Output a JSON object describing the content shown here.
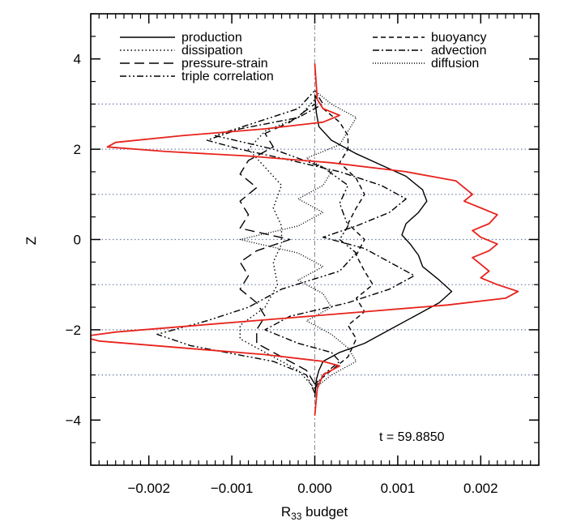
{
  "chart_data": {
    "type": "line",
    "xlabel": "R",
    "xlabel_subscript": "33",
    "xlabel_suffix": " budget",
    "ylabel": "Z",
    "xlim": [
      -0.0027,
      0.0027
    ],
    "ylim": [
      -5,
      5
    ],
    "x_ticks": [
      -0.002,
      -0.001,
      0.0,
      0.001,
      0.002
    ],
    "x_tick_labels": [
      "−0.002",
      "−0.001",
      "0.000",
      "0.001",
      "0.002"
    ],
    "y_ticks": [
      -4,
      -2,
      0,
      2,
      4
    ],
    "y_tick_labels": [
      "−4",
      "−2",
      "0",
      "2",
      "4"
    ],
    "horizontal_reference_lines": [
      -3,
      -2,
      -1,
      0,
      1,
      2,
      3
    ],
    "vertical_reference_line": 0,
    "annotation": "t = 59.8850",
    "legend_placement": "top",
    "series": [
      {
        "name": "production",
        "style": "solid",
        "color": "#000000",
        "points": [
          [
            0,
            -3.5
          ],
          [
            2e-05,
            -3.1
          ],
          [
            5e-05,
            -2.9
          ],
          [
            0.0001,
            -2.7
          ],
          [
            0.0003,
            -2.5
          ],
          [
            0.0006,
            -2.3
          ],
          [
            0.0009,
            -2.0
          ],
          [
            0.0012,
            -1.7
          ],
          [
            0.0015,
            -1.4
          ],
          [
            0.00165,
            -1.15
          ],
          [
            0.0015,
            -0.9
          ],
          [
            0.0013,
            -0.6
          ],
          [
            0.00125,
            -0.35
          ],
          [
            0.00115,
            -0.1
          ],
          [
            0.00105,
            0.1
          ],
          [
            0.0011,
            0.35
          ],
          [
            0.00125,
            0.6
          ],
          [
            0.00135,
            0.85
          ],
          [
            0.0013,
            1.1
          ],
          [
            0.0011,
            1.4
          ],
          [
            0.0008,
            1.65
          ],
          [
            0.0005,
            1.9
          ],
          [
            0.0002,
            2.2
          ],
          [
            5e-05,
            2.5
          ],
          [
            2e-05,
            2.8
          ],
          [
            0,
            3.2
          ]
        ]
      },
      {
        "name": "dissipation",
        "style": "dotted",
        "color": "#000000",
        "points": [
          [
            0,
            -3.3
          ],
          [
            -0.0002,
            -2.9
          ],
          [
            -0.0006,
            -2.5
          ],
          [
            -0.0009,
            -2.2
          ],
          [
            -0.0009,
            -1.9
          ],
          [
            -0.0006,
            -1.5
          ],
          [
            -0.00045,
            -1.0
          ],
          [
            -0.0005,
            -0.5
          ],
          [
            -0.0004,
            -0.1
          ],
          [
            -0.0004,
            0.3
          ],
          [
            -0.0005,
            0.7
          ],
          [
            -0.0004,
            1.2
          ],
          [
            -0.0006,
            1.6
          ],
          [
            -0.0008,
            2.0
          ],
          [
            -0.0006,
            2.4
          ],
          [
            -0.0002,
            2.7
          ],
          [
            0,
            3.1
          ]
        ]
      },
      {
        "name": "pressure-strain",
        "style": "long-dash",
        "color": "#000000",
        "points": [
          [
            0,
            -3.2
          ],
          [
            -0.0001,
            -2.9
          ],
          [
            -0.0004,
            -2.6
          ],
          [
            -0.0007,
            -2.3
          ],
          [
            -0.0007,
            -2.0
          ],
          [
            -0.0006,
            -1.7
          ],
          [
            -0.0007,
            -1.4
          ],
          [
            -0.0009,
            -1.1
          ],
          [
            -0.0008,
            -0.8
          ],
          [
            -0.0009,
            -0.5
          ],
          [
            -0.0007,
            -0.25
          ],
          [
            -0.0003,
            0.0
          ],
          [
            -0.0009,
            0.25
          ],
          [
            -0.0008,
            0.55
          ],
          [
            -0.0009,
            0.85
          ],
          [
            -0.0007,
            1.15
          ],
          [
            -0.0009,
            1.45
          ],
          [
            -0.0008,
            1.75
          ],
          [
            -0.0005,
            2.05
          ],
          [
            -0.0006,
            2.35
          ],
          [
            -0.0003,
            2.6
          ],
          [
            0,
            3.0
          ]
        ]
      },
      {
        "name": "triple correlation",
        "style": "dash-dot-dot",
        "color": "#000000",
        "points": [
          [
            0,
            -3.4
          ],
          [
            -0.0001,
            -3.0
          ],
          [
            -0.0005,
            -2.7
          ],
          [
            -0.0015,
            -2.35
          ],
          [
            -0.0019,
            -2.1
          ],
          [
            -0.0013,
            -1.8
          ],
          [
            -0.0008,
            -1.5
          ],
          [
            -0.0004,
            -1.1
          ],
          [
            0.0003,
            -0.7
          ],
          [
            0.0005,
            -0.3
          ],
          [
            0.0003,
            0.0
          ],
          [
            0.0004,
            0.3
          ],
          [
            0.0003,
            0.8
          ],
          [
            0.0004,
            1.2
          ],
          [
            0.0001,
            1.6
          ],
          [
            -0.0005,
            2.0
          ],
          [
            -0.0012,
            2.3
          ],
          [
            -0.0007,
            2.6
          ],
          [
            -0.0002,
            2.9
          ],
          [
            0,
            3.3
          ]
        ]
      },
      {
        "name": "buoyancy",
        "style": "short-dash",
        "color": "#000000",
        "points": [
          [
            0,
            -3.2
          ],
          [
            0.0002,
            -2.9
          ],
          [
            0.0004,
            -2.6
          ],
          [
            0.0005,
            -2.2
          ],
          [
            0.0004,
            -1.9
          ],
          [
            0.0006,
            -1.6
          ],
          [
            0.0005,
            -1.3
          ],
          [
            0.0007,
            -1.0
          ],
          [
            0.0006,
            -0.7
          ],
          [
            0.0005,
            -0.35
          ],
          [
            0.0006,
            0.0
          ],
          [
            0.0004,
            0.35
          ],
          [
            0.0005,
            0.7
          ],
          [
            0.0006,
            1.0
          ],
          [
            0.0005,
            1.35
          ],
          [
            0.0003,
            1.7
          ],
          [
            0.0004,
            2.0
          ],
          [
            0.0004,
            2.3
          ],
          [
            0.0003,
            2.6
          ],
          [
            0.0001,
            2.9
          ],
          [
            0,
            3.2
          ]
        ]
      },
      {
        "name": "advection",
        "style": "dash-dot",
        "color": "#000000",
        "points": [
          [
            0,
            -3.3
          ],
          [
            0.0001,
            -3.0
          ],
          [
            0.0003,
            -2.7
          ],
          [
            0.0002,
            -2.5
          ],
          [
            -0.0002,
            -2.3
          ],
          [
            -0.0006,
            -2.0
          ],
          [
            -0.0003,
            -1.7
          ],
          [
            0.0004,
            -1.4
          ],
          [
            0.0009,
            -1.1
          ],
          [
            0.0012,
            -0.8
          ],
          [
            0.0009,
            -0.5
          ],
          [
            0.0006,
            -0.2
          ],
          [
            0.0001,
            0.05
          ],
          [
            0.0005,
            0.3
          ],
          [
            0.0009,
            0.6
          ],
          [
            0.0011,
            0.9
          ],
          [
            0.0008,
            1.2
          ],
          [
            0.0003,
            1.5
          ],
          [
            -0.0004,
            1.8
          ],
          [
            -0.0009,
            2.0
          ],
          [
            -0.0013,
            2.2
          ],
          [
            -0.0009,
            2.45
          ],
          [
            -0.0002,
            2.7
          ],
          [
            0.0001,
            3.0
          ],
          [
            0,
            3.3
          ]
        ]
      },
      {
        "name": "diffusion",
        "style": "fine-dotted",
        "color": "#000000",
        "points": [
          [
            0,
            -3.3
          ],
          [
            0.0002,
            -3.0
          ],
          [
            0.0005,
            -2.7
          ],
          [
            0.0004,
            -2.4
          ],
          [
            0.0002,
            -2.1
          ],
          [
            -0.0001,
            -1.8
          ],
          [
            0.0002,
            -1.5
          ],
          [
            0.0001,
            -1.2
          ],
          [
            -0.0002,
            -0.9
          ],
          [
            0.0001,
            -0.6
          ],
          [
            -0.0002,
            -0.3
          ],
          [
            -0.0009,
            0.0
          ],
          [
            -0.0002,
            0.3
          ],
          [
            0.0001,
            0.6
          ],
          [
            -0.0002,
            0.9
          ],
          [
            0.0001,
            1.2
          ],
          [
            0.0002,
            1.5
          ],
          [
            -0.0001,
            1.8
          ],
          [
            0.0003,
            2.1
          ],
          [
            0.0004,
            2.4
          ],
          [
            0.0005,
            2.7
          ],
          [
            0.0002,
            3.0
          ],
          [
            0,
            3.3
          ]
        ]
      },
      {
        "name": "",
        "style": "solid",
        "color": "#e8221c",
        "points": [
          [
            0,
            -3.9
          ],
          [
            3e-05,
            -3.3
          ],
          [
            0.0001,
            -3.0
          ],
          [
            0.0003,
            -2.8
          ],
          [
            0.0001,
            -2.7
          ],
          [
            -0.0006,
            -2.55
          ],
          [
            -0.0016,
            -2.4
          ],
          [
            -0.0026,
            -2.25
          ],
          [
            -0.0028,
            -2.15
          ],
          [
            -0.0024,
            -2.05
          ],
          [
            -0.0014,
            -1.9
          ],
          [
            -0.0004,
            -1.75
          ],
          [
            0.0006,
            -1.6
          ],
          [
            0.0016,
            -1.45
          ],
          [
            0.0023,
            -1.3
          ],
          [
            0.00245,
            -1.15
          ],
          [
            0.0022,
            -1.0
          ],
          [
            0.002,
            -0.85
          ],
          [
            0.0021,
            -0.7
          ],
          [
            0.002,
            -0.55
          ],
          [
            0.0019,
            -0.4
          ],
          [
            0.0021,
            -0.25
          ],
          [
            0.0022,
            -0.1
          ],
          [
            0.002,
            0.05
          ],
          [
            0.0019,
            0.2
          ],
          [
            0.0021,
            0.35
          ],
          [
            0.0022,
            0.55
          ],
          [
            0.002,
            0.7
          ],
          [
            0.0018,
            0.85
          ],
          [
            0.0019,
            1.0
          ],
          [
            0.0018,
            1.15
          ],
          [
            0.0017,
            1.3
          ],
          [
            0.0011,
            1.5
          ],
          [
            0.0002,
            1.7
          ],
          [
            -0.0008,
            1.85
          ],
          [
            -0.0018,
            1.95
          ],
          [
            -0.0025,
            2.05
          ],
          [
            -0.0024,
            2.15
          ],
          [
            -0.0016,
            2.3
          ],
          [
            -0.0006,
            2.45
          ],
          [
            0.0001,
            2.6
          ],
          [
            0.0003,
            2.75
          ],
          [
            0.0001,
            2.9
          ],
          [
            3e-05,
            3.1
          ],
          [
            0,
            3.9
          ]
        ]
      }
    ]
  }
}
